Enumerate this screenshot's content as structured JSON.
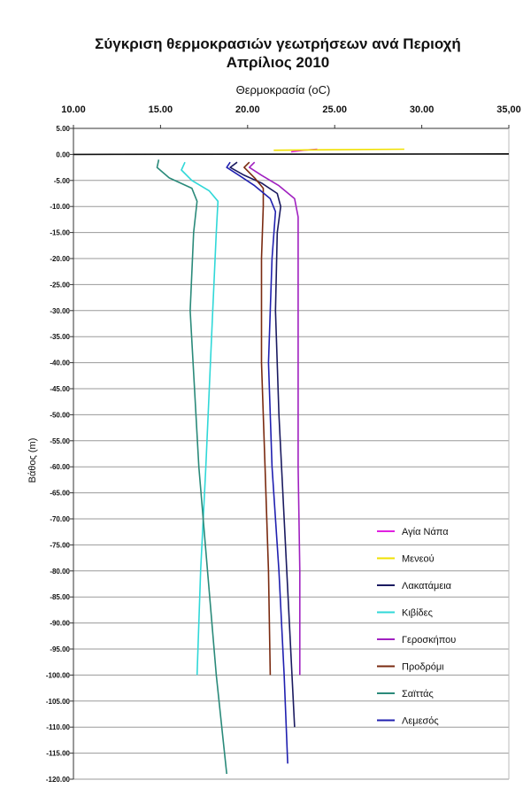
{
  "chart_data": {
    "type": "line",
    "title": "Σύγκριση θερμοκρασιών γεωτρήσεων ανά Περιοχή",
    "subtitle": "Απρίλιος 2010",
    "xlabel": "Θερμοκρασία (oC)",
    "ylabel": "Βάθος (m)",
    "xlim": [
      10,
      35
    ],
    "ylim": [
      -120,
      5
    ],
    "x_ticks": [
      "10.00",
      "15.00",
      "20.00",
      "25.00",
      "30.00",
      "35,00"
    ],
    "y_ticks": [
      "5.00",
      "0.00",
      "-5.00",
      "-10.00",
      "-15.00",
      "-20.00",
      "-25.00",
      "-30.00",
      "-35.00",
      "-40.00",
      "-45.00",
      "-50.00",
      "-55.00",
      "-60.00",
      "-65.00",
      "-70.00",
      "-75.00",
      "-80.00",
      "-85.00",
      "-90.00",
      "-95.00",
      "-100.00",
      "-105.00",
      "-110.00",
      "-115.00",
      "-120.00"
    ],
    "grid": "horizontal",
    "x_axis_position": "top",
    "legend_position": "bottom-right",
    "series": [
      {
        "name": "Αγία Νάπα",
        "color": "#e020e0",
        "points": [
          [
            22.5,
            0.5
          ],
          [
            23.2,
            0.8
          ],
          [
            24.0,
            1.0
          ]
        ]
      },
      {
        "name": "Μενεού",
        "color": "#f0e000",
        "points": [
          [
            21.5,
            0.8
          ],
          [
            25.0,
            0.9
          ],
          [
            29.0,
            1.0
          ]
        ]
      },
      {
        "name": "Λακατάμεια",
        "color": "#1a1a60",
        "points": [
          [
            19.4,
            -1.5
          ],
          [
            19.0,
            -2.5
          ],
          [
            19.8,
            -4.0
          ],
          [
            20.8,
            -5.5
          ],
          [
            21.7,
            -7.5
          ],
          [
            21.9,
            -10.0
          ],
          [
            21.7,
            -15.0
          ],
          [
            21.6,
            -30.0
          ],
          [
            21.8,
            -50.0
          ],
          [
            22.1,
            -70.0
          ],
          [
            22.4,
            -90.0
          ],
          [
            22.7,
            -110.0
          ]
        ]
      },
      {
        "name": "Κιβίδες",
        "color": "#30d8d8",
        "points": [
          [
            16.4,
            -1.5
          ],
          [
            16.2,
            -3.0
          ],
          [
            16.8,
            -5.0
          ],
          [
            17.8,
            -7.0
          ],
          [
            18.3,
            -9.0
          ],
          [
            18.2,
            -15.0
          ],
          [
            18.0,
            -30.0
          ],
          [
            17.6,
            -60.0
          ],
          [
            17.3,
            -80.0
          ],
          [
            17.1,
            -100.0
          ]
        ]
      },
      {
        "name": "Γεροσκήπου",
        "color": "#a020c0",
        "points": [
          [
            20.4,
            -1.5
          ],
          [
            20.1,
            -2.5
          ],
          [
            20.8,
            -4.0
          ],
          [
            21.8,
            -6.0
          ],
          [
            22.7,
            -8.5
          ],
          [
            22.9,
            -12.0
          ],
          [
            22.9,
            -30.0
          ],
          [
            22.9,
            -60.0
          ],
          [
            23.0,
            -80.0
          ],
          [
            23.0,
            -100.0
          ]
        ]
      },
      {
        "name": "Προδρόμι",
        "color": "#7a2a10",
        "points": [
          [
            20.1,
            -1.5
          ],
          [
            19.8,
            -2.5
          ],
          [
            20.4,
            -4.5
          ],
          [
            20.9,
            -6.5
          ],
          [
            20.9,
            -10.0
          ],
          [
            20.8,
            -20.0
          ],
          [
            20.8,
            -40.0
          ],
          [
            21.0,
            -60.0
          ],
          [
            21.2,
            -80.0
          ],
          [
            21.3,
            -100.0
          ]
        ]
      },
      {
        "name": "Σαϊττάς",
        "color": "#2a8a7a",
        "points": [
          [
            14.9,
            -1.0
          ],
          [
            14.8,
            -2.5
          ],
          [
            15.5,
            -4.5
          ],
          [
            16.8,
            -6.5
          ],
          [
            17.1,
            -9.0
          ],
          [
            16.9,
            -15.0
          ],
          [
            16.7,
            -30.0
          ],
          [
            17.2,
            -60.0
          ],
          [
            17.7,
            -80.0
          ],
          [
            18.2,
            -100.0
          ],
          [
            18.8,
            -119.0
          ]
        ]
      },
      {
        "name": "Λεμεσός",
        "color": "#2020b0",
        "points": [
          [
            19.0,
            -1.5
          ],
          [
            18.8,
            -2.5
          ],
          [
            19.5,
            -4.0
          ],
          [
            20.4,
            -6.0
          ],
          [
            21.3,
            -8.5
          ],
          [
            21.6,
            -11.0
          ],
          [
            21.4,
            -20.0
          ],
          [
            21.2,
            -40.0
          ],
          [
            21.4,
            -60.0
          ],
          [
            21.8,
            -80.0
          ],
          [
            22.1,
            -100.0
          ],
          [
            22.3,
            -117.0
          ]
        ]
      },
      {
        "name": "",
        "color": "#101010",
        "points": [
          [
            10.0,
            0.0
          ],
          [
            35.0,
            0.1
          ]
        ]
      }
    ]
  }
}
